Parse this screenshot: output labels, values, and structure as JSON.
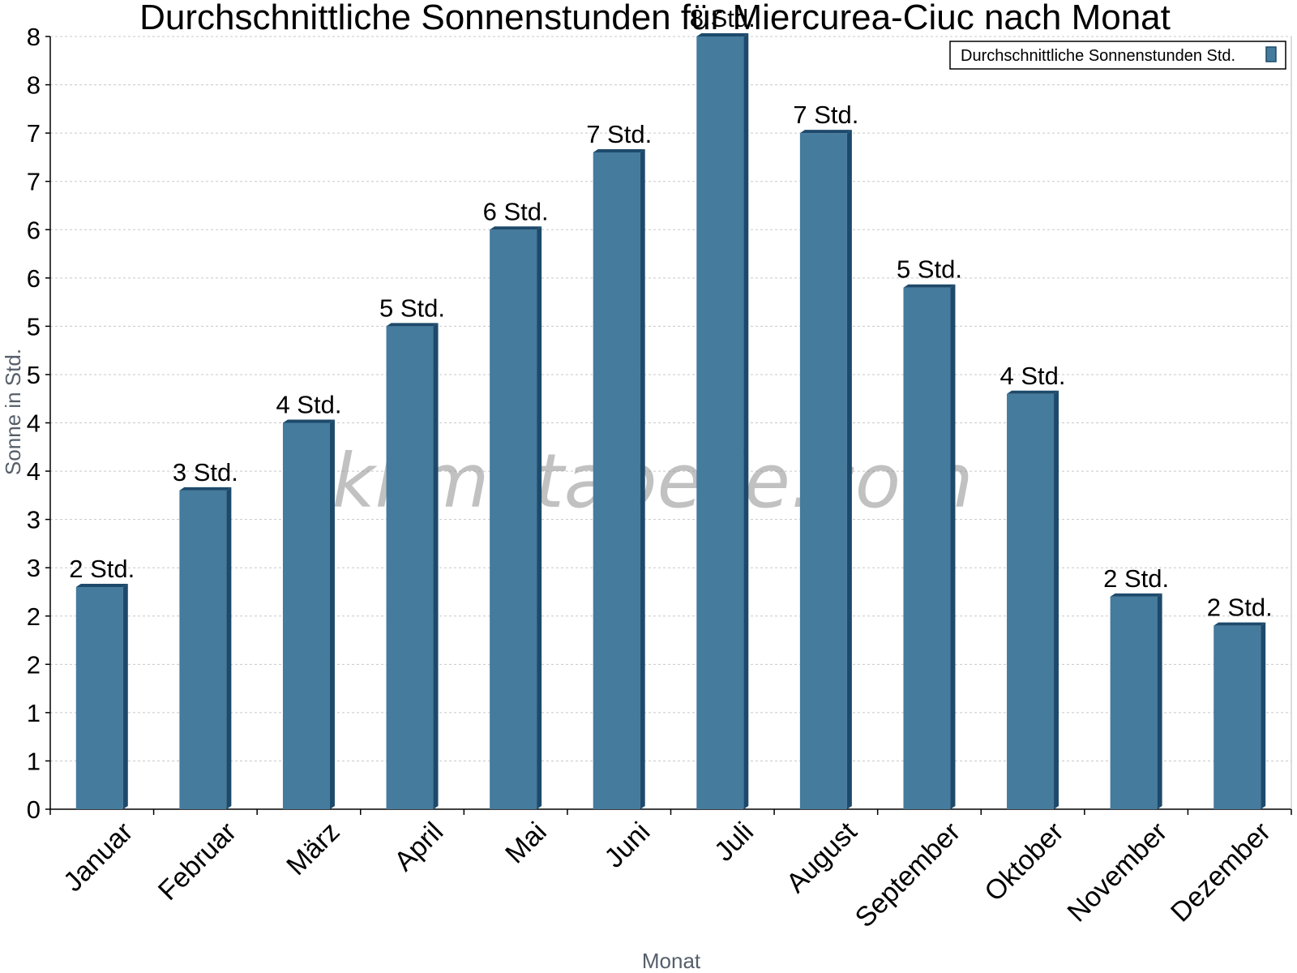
{
  "chart_data": {
    "type": "bar",
    "title": "Durchschnittliche Sonnenstunden für Miercurea-Ciuc nach Monat",
    "xlabel": "Monat",
    "ylabel": "Sonne in Std.",
    "categories": [
      "Januar",
      "Februar",
      "März",
      "April",
      "Mai",
      "Juni",
      "Juli",
      "August",
      "September",
      "Oktober",
      "November",
      "Dezember"
    ],
    "series": [
      {
        "name": "Durchschnittliche Sonnenstunden Std.",
        "values": [
          2.3,
          3.3,
          4.0,
          5.0,
          6.0,
          6.8,
          8.0,
          7.0,
          5.4,
          4.3,
          2.2,
          1.9
        ],
        "data_labels": [
          "2 Std.",
          "3 Std.",
          "4 Std.",
          "5 Std.",
          "6 Std.",
          "7 Std.",
          "8 Std.",
          "7 Std.",
          "5 Std.",
          "4 Std.",
          "2 Std.",
          "2 Std."
        ],
        "color": "#457b9d",
        "edge_color": "#1d4a6b"
      }
    ],
    "ylim": [
      0,
      8
    ],
    "y_ticks": [
      0,
      0.5,
      1,
      1.5,
      2,
      2.5,
      3,
      3.5,
      4,
      4.5,
      5,
      5.5,
      6,
      6.5,
      7,
      7.5,
      8
    ],
    "y_tick_labels": [
      "0",
      "1",
      "1",
      "2",
      "2",
      "3",
      "3",
      "4",
      "4",
      "5",
      "5",
      "6",
      "6",
      "7",
      "7",
      "8",
      "8"
    ],
    "grid": true,
    "legend_position": "top-right",
    "watermark": "klimatabelle.com"
  }
}
